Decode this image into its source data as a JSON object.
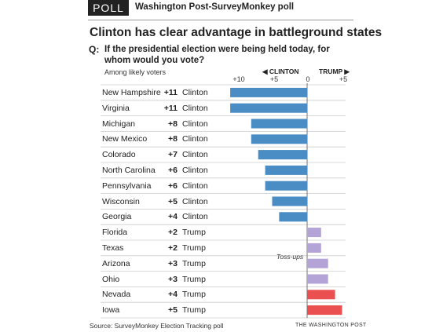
{
  "header": {
    "tag": "POLL",
    "source_line": "Washington Post-SurveyMonkey poll"
  },
  "title": "Clinton has clear advantage in battleground states",
  "question": {
    "marker": "Q:",
    "text": "If the presidential election were being held today, for whom would you vote?"
  },
  "subtitle": "Among likely voters",
  "axis": {
    "left_label": "◀ CLINTON",
    "right_label": "TRUMP ▶",
    "ticks": [
      "+10",
      "+5",
      "0",
      "+5"
    ]
  },
  "tossups_label": "Toss-ups",
  "footer": {
    "source": "Source: SurveyMonkey Election Tracking poll",
    "credit": "THE WASHINGTON POST"
  },
  "colors": {
    "clinton": "#4a8cc4",
    "tossup": "#b3a3d6",
    "trump": "#eb5050",
    "grid": "#cccccc"
  },
  "chart_data": {
    "type": "bar",
    "orientation": "horizontal",
    "xlim": [
      -11,
      5
    ],
    "rows": [
      {
        "state": "New Hampshire",
        "margin": "+11",
        "leader": "Clinton",
        "value": -11,
        "group": "clinton"
      },
      {
        "state": "Virginia",
        "margin": "+11",
        "leader": "Clinton",
        "value": -11,
        "group": "clinton"
      },
      {
        "state": "Michigan",
        "margin": "+8",
        "leader": "Clinton",
        "value": -8,
        "group": "clinton"
      },
      {
        "state": "New Mexico",
        "margin": "+8",
        "leader": "Clinton",
        "value": -8,
        "group": "clinton"
      },
      {
        "state": "Colorado",
        "margin": "+7",
        "leader": "Clinton",
        "value": -7,
        "group": "clinton"
      },
      {
        "state": "North Carolina",
        "margin": "+6",
        "leader": "Clinton",
        "value": -6,
        "group": "clinton"
      },
      {
        "state": "Pennsylvania",
        "margin": "+6",
        "leader": "Clinton",
        "value": -6,
        "group": "clinton"
      },
      {
        "state": "Wisconsin",
        "margin": "+5",
        "leader": "Clinton",
        "value": -5,
        "group": "clinton"
      },
      {
        "state": "Georgia",
        "margin": "+4",
        "leader": "Clinton",
        "value": -4,
        "group": "clinton"
      },
      {
        "state": "Florida",
        "margin": "+2",
        "leader": "Trump",
        "value": 2,
        "group": "tossup"
      },
      {
        "state": "Texas",
        "margin": "+2",
        "leader": "Trump",
        "value": 2,
        "group": "tossup"
      },
      {
        "state": "Arizona",
        "margin": "+3",
        "leader": "Trump",
        "value": 3,
        "group": "tossup"
      },
      {
        "state": "Ohio",
        "margin": "+3",
        "leader": "Trump",
        "value": 3,
        "group": "tossup"
      },
      {
        "state": "Nevada",
        "margin": "+4",
        "leader": "Trump",
        "value": 4,
        "group": "trump"
      },
      {
        "state": "Iowa",
        "margin": "+5",
        "leader": "Trump",
        "value": 5,
        "group": "trump"
      }
    ]
  }
}
